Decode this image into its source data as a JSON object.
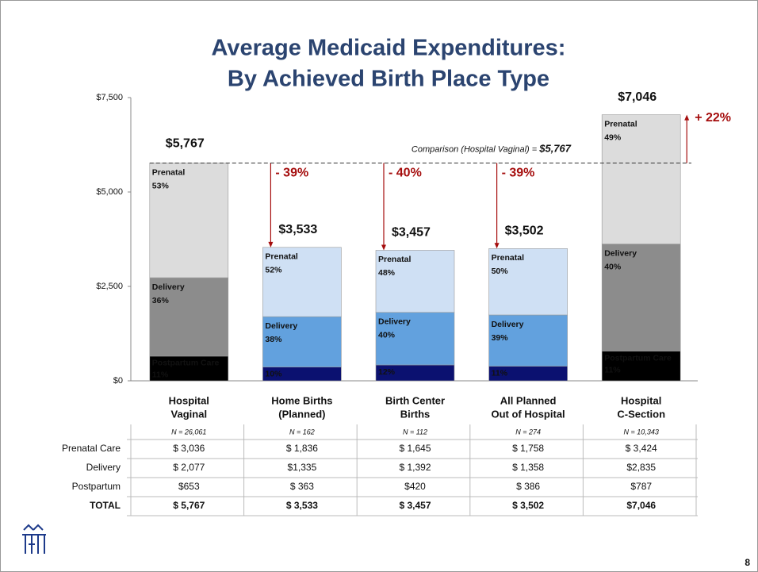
{
  "chart_data": {
    "type": "stacked_bar",
    "title": [
      "Average Medicaid Expenditures:",
      "By Achieved Birth Place Type"
    ],
    "categories": [
      [
        "Hospital",
        "Vaginal"
      ],
      [
        "Home Births",
        "(Planned)"
      ],
      [
        "Birth Center",
        "Births"
      ],
      [
        "All Planned",
        "Out of Hospital"
      ],
      [
        "Hospital",
        "C-Section"
      ]
    ],
    "sample_sizes": [
      "N = 26,061",
      "N = 162",
      "N = 112",
      "N = 274",
      "N = 10,343"
    ],
    "series": [
      {
        "colors": [
          "#000000",
          "#0b1170",
          "#0b1170",
          "#0b1170",
          "#000000"
        ],
        "text_color": "#ffffff",
        "values": [
          653,
          363,
          420,
          386,
          787
        ],
        "segment_labels": [
          [
            "Postpartum Care",
            "11%"
          ],
          [
            "10%"
          ],
          [
            "12%"
          ],
          [
            "11%"
          ],
          [
            "Postpartum Care",
            "11%"
          ]
        ]
      },
      {
        "colors": [
          "#8c8c8c",
          "#62a1de",
          "#62a1de",
          "#62a1de",
          "#8c8c8c"
        ],
        "text_color": "#ffffff",
        "values": [
          2077,
          1335,
          1392,
          1358,
          2835
        ],
        "segment_labels": [
          [
            "Delivery",
            "36%"
          ],
          [
            "Delivery",
            "38%"
          ],
          [
            "Delivery",
            "40%"
          ],
          [
            "Delivery",
            "39%"
          ],
          [
            "Delivery",
            "40%"
          ]
        ]
      },
      {
        "colors": [
          "#dcdcdc",
          "#cfe0f4",
          "#cfe0f4",
          "#cfe0f4",
          "#dcdcdc"
        ],
        "text_color": "#111111",
        "values": [
          3036,
          1836,
          1645,
          1758,
          3424
        ],
        "segment_labels": [
          [
            "Prenatal",
            "53%"
          ],
          [
            "Prenatal",
            "52%"
          ],
          [
            "Prenatal",
            "48%"
          ],
          [
            "Prenatal",
            "50%"
          ],
          [
            "Prenatal",
            "49%"
          ]
        ]
      }
    ],
    "totals": [
      5767,
      3533,
      3457,
      3502,
      7046
    ],
    "total_labels": [
      "$5,767",
      "$3,533",
      "$3,457",
      "$3,502",
      "$7,046"
    ],
    "change_labels": [
      null,
      "- 39%",
      "- 40%",
      "- 39%",
      "+ 22%"
    ],
    "comparison": {
      "label": "Comparison (Hospital Vaginal) = ",
      "value": 5767,
      "value_label": "$5,767"
    },
    "ylim": [
      0,
      7500
    ],
    "yticks": [
      {
        "value": 0,
        "label": "$0"
      },
      {
        "value": 2500,
        "label": "$2,500"
      },
      {
        "value": 5000,
        "label": "$5,000"
      },
      {
        "value": 7500,
        "label": "$7,500"
      }
    ]
  },
  "table": {
    "rows": [
      {
        "label": "Prenatal Care",
        "cells": [
          "$ 3,036",
          "$ 1,836",
          "$ 1,645",
          "$ 1,758",
          "$ 3,424"
        ]
      },
      {
        "label": "Delivery",
        "cells": [
          "$ 2,077",
          "$1,335",
          "$ 1,392",
          "$ 1,358",
          "$2,835"
        ]
      },
      {
        "label": "Postpartum",
        "cells": [
          "$653",
          "$ 363",
          "$420",
          "$ 386",
          "$787"
        ]
      },
      {
        "label": "TOTAL",
        "cells": [
          "$ 5,767",
          "$ 3,533",
          "$ 3,457",
          "$ 3,502",
          "$7,046"
        ]
      }
    ]
  },
  "page_number": "8"
}
